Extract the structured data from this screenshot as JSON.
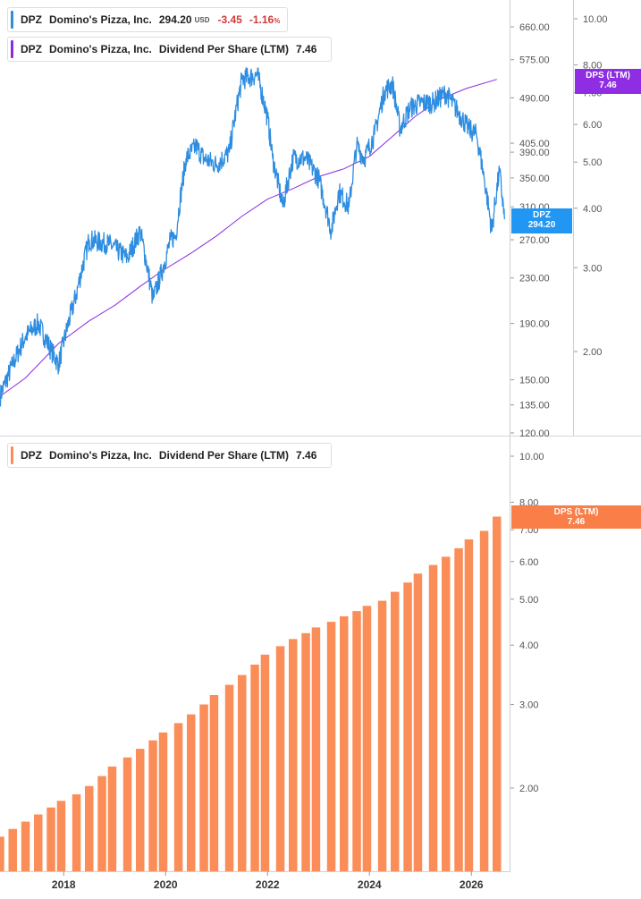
{
  "legend_price": {
    "ticker": "DPZ",
    "company": "Domino's Pizza, Inc.",
    "last": "294.20",
    "currency": "USD",
    "change": "-3.45",
    "change_pct": "-1.16",
    "pct_sign": "%"
  },
  "legend_dps_top": {
    "ticker": "DPZ",
    "company": "Domino's Pizza, Inc.",
    "metric": "Dividend Per Share (LTM)",
    "value": "7.46"
  },
  "legend_dps_bottom": {
    "ticker": "DPZ",
    "company": "Domino's Pizza, Inc.",
    "metric": "Dividend Per Share (LTM)",
    "value": "7.46"
  },
  "flags": {
    "price_flag": {
      "line1": "DPZ",
      "line2": "294.20"
    },
    "dps_flag_top": {
      "line1": "DPS (LTM)",
      "line2": "7.46"
    },
    "dps_flag_bottom": {
      "line1": "DPS (LTM)",
      "line2": "7.46"
    }
  },
  "colors": {
    "price": "#2e8de0",
    "price_flag": "#2196f3",
    "dps_line": "#8a2be2",
    "dps_flag": "#8e2de2",
    "bars": "#fa8d58",
    "bar_flag": "#f97e48",
    "negative": "#d23b3b"
  },
  "chart_data": [
    {
      "type": "line",
      "axis_scale": "log",
      "price_axis_ticks": [
        "660.00",
        "575.00",
        "490.00",
        "405.00",
        "390.00",
        "350.00",
        "310.00",
        "270.00",
        "230.00",
        "190.00",
        "150.00",
        "135.00",
        "120.00"
      ],
      "dps_axis_ticks": [
        "10.00",
        "8.00",
        "7.00",
        "6.00",
        "5.00",
        "4.00",
        "3.00",
        "2.00"
      ],
      "x_ticks": [
        "2018",
        "2020",
        "2022",
        "2024",
        "2026"
      ],
      "series": [
        {
          "name": "DPZ",
          "axis": "left",
          "x": [
            2016.75,
            2017.0,
            2017.25,
            2017.5,
            2017.75,
            2017.9,
            2018.25,
            2018.5,
            2018.9,
            2019.25,
            2019.5,
            2019.75,
            2019.95,
            2020.1,
            2020.2,
            2020.4,
            2020.6,
            2020.75,
            2021.0,
            2021.25,
            2021.5,
            2021.8,
            2022.0,
            2022.1,
            2022.3,
            2022.5,
            2022.75,
            2023.0,
            2023.25,
            2023.4,
            2023.6,
            2023.75,
            2023.9,
            2024.1,
            2024.3,
            2024.45,
            2024.6,
            2024.8,
            2025.0,
            2025.25,
            2025.5,
            2025.75,
            2025.95,
            2026.1,
            2026.25,
            2026.4,
            2026.55,
            2026.65
          ],
          "values": [
            140,
            160,
            180,
            190,
            170,
            160,
            215,
            270,
            265,
            250,
            280,
            210,
            240,
            270,
            275,
            380,
            400,
            380,
            370,
            390,
            530,
            540,
            450,
            380,
            310,
            380,
            380,
            350,
            280,
            330,
            310,
            400,
            380,
            420,
            505,
            520,
            430,
            470,
            480,
            480,
            500,
            460,
            430,
            420,
            350,
            280,
            360,
            294.2
          ]
        },
        {
          "name": "Dividend Per Share (LTM)",
          "axis": "right",
          "x": [
            2016.75,
            2017.25,
            2017.9,
            2018.5,
            2019.0,
            2019.5,
            2019.9,
            2020.5,
            2021.0,
            2021.5,
            2022.0,
            2022.5,
            2023.0,
            2023.5,
            2024.0,
            2024.4,
            2024.9,
            2025.4,
            2025.9,
            2026.5
          ],
          "values": [
            1.61,
            1.76,
            2.08,
            2.32,
            2.5,
            2.74,
            2.94,
            3.22,
            3.5,
            3.85,
            4.18,
            4.4,
            4.66,
            4.84,
            5.14,
            5.6,
            6.24,
            6.79,
            7.14,
            7.46
          ]
        }
      ]
    },
    {
      "type": "bar",
      "axis_scale": "log",
      "y_axis_ticks": [
        "10.00",
        "8.00",
        "7.00",
        "6.00",
        "5.00",
        "4.00",
        "3.00",
        "2.00"
      ],
      "x_ticks": [
        "2018",
        "2020",
        "2022",
        "2024",
        "2026"
      ],
      "series": [
        {
          "name": "Dividend Per Share (LTM)",
          "x": [
            2016.75,
            2017.0,
            2017.25,
            2017.5,
            2017.75,
            2017.95,
            2018.25,
            2018.5,
            2018.75,
            2018.95,
            2019.25,
            2019.5,
            2019.75,
            2019.95,
            2020.25,
            2020.5,
            2020.75,
            2020.95,
            2021.25,
            2021.5,
            2021.75,
            2021.95,
            2022.25,
            2022.5,
            2022.75,
            2022.95,
            2023.25,
            2023.5,
            2023.75,
            2023.95,
            2024.25,
            2024.5,
            2024.75,
            2024.95,
            2025.25,
            2025.5,
            2025.75,
            2025.95,
            2026.25,
            2026.5
          ],
          "values": [
            1.58,
            1.64,
            1.7,
            1.76,
            1.82,
            1.88,
            1.94,
            2.02,
            2.12,
            2.22,
            2.32,
            2.42,
            2.52,
            2.62,
            2.74,
            2.86,
            3.0,
            3.14,
            3.3,
            3.46,
            3.64,
            3.82,
            3.98,
            4.12,
            4.24,
            4.36,
            4.48,
            4.6,
            4.72,
            4.84,
            4.96,
            5.18,
            5.42,
            5.66,
            5.9,
            6.14,
            6.4,
            6.68,
            6.96,
            7.46
          ]
        }
      ]
    }
  ]
}
